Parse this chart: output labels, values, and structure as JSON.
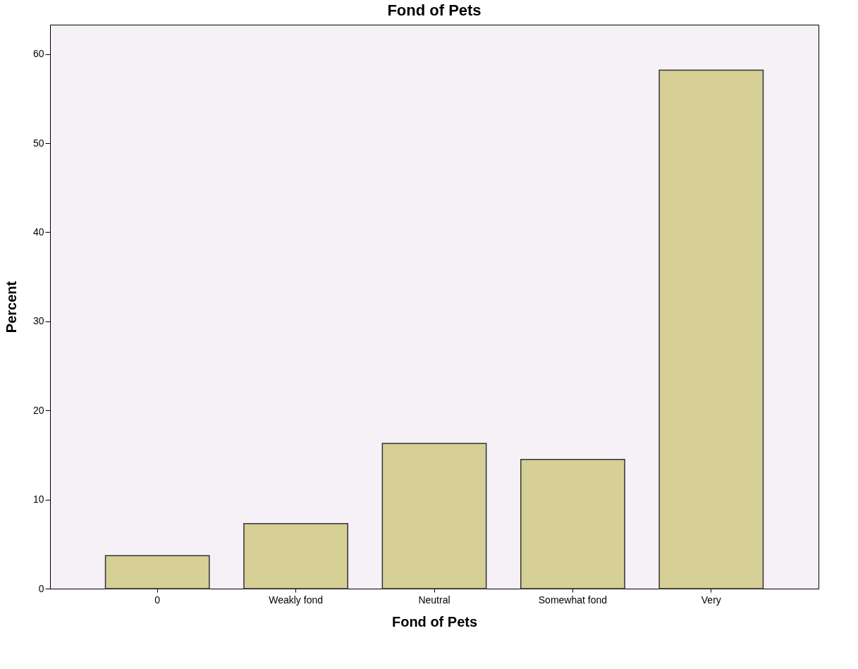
{
  "chart_data": {
    "type": "bar",
    "title": "Fond of Pets",
    "xlabel": "Fond of Pets",
    "ylabel": "Percent",
    "categories": [
      "0",
      "Weakly fond",
      "Neutral",
      "Somewhat fond",
      "Very"
    ],
    "values": [
      3.7,
      7.3,
      16.3,
      14.5,
      58.2
    ],
    "color": "#d6cf96",
    "ylim": [
      0,
      63.3
    ],
    "yticks": [
      0,
      10,
      20,
      30,
      40,
      50,
      60
    ],
    "grid": false
  }
}
